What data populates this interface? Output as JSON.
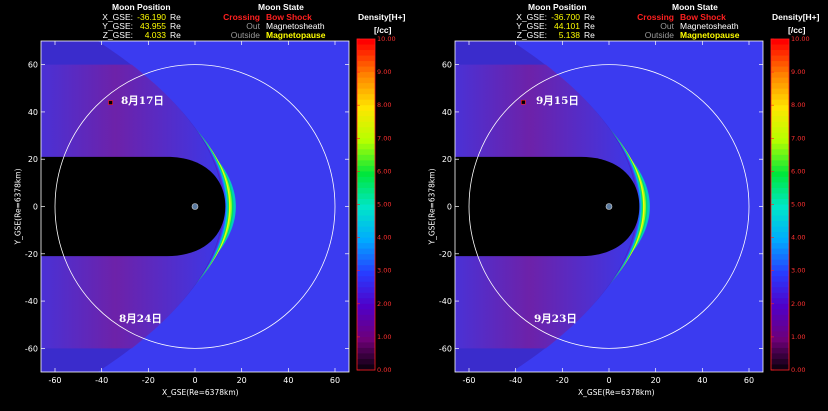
{
  "panels": [
    {
      "moon_position_title": "Moon Position",
      "x_label": "X_GSE:",
      "x_value": "-36.190",
      "x_unit": "Re",
      "y_label": "Y_GSE:",
      "y_value": "43.955",
      "y_unit": "Re",
      "z_label": "Z_GSE:",
      "z_value": "4.033",
      "z_unit": "Re",
      "moon_state_title": "Moon State",
      "state_rows": [
        {
          "status": "Crossing",
          "region": "Bow Shock"
        },
        {
          "status": "Out",
          "region": "Magnetosheath"
        },
        {
          "status": "Outside",
          "region": "Magnetopause"
        }
      ],
      "date_top": "8月17日",
      "date_bottom": "8月24日",
      "density_title": "Density[H+]",
      "density_unit": "[/cc]",
      "xlabel": "X_GSE(Re=6378km)",
      "ylabel": "Y_GSE(Re=6378km)",
      "moon_x": -36.19,
      "moon_y": 43.955
    },
    {
      "moon_position_title": "Moon Position",
      "x_label": "X_GSE:",
      "x_value": "-36.700",
      "x_unit": "Re",
      "y_label": "Y_GSE:",
      "y_value": "44.101",
      "y_unit": "Re",
      "z_label": "Z_GSE:",
      "z_value": "5.138",
      "z_unit": "Re",
      "moon_state_title": "Moon State",
      "state_rows": [
        {
          "status": "Crossing",
          "region": "Bow Shock"
        },
        {
          "status": "Out",
          "region": "Magnetosheath"
        },
        {
          "status": "Outside",
          "region": "Magnetopause"
        }
      ],
      "date_top": "9月15日",
      "date_bottom": "9月23日",
      "density_title": "Density[H+]",
      "density_unit": "[/cc]",
      "xlabel": "X_GSE(Re=6378km)",
      "ylabel": "Y_GSE(Re=6378km)",
      "moon_x": -36.7,
      "moon_y": 44.101
    }
  ],
  "x_ticks": [
    "-60",
    "-40",
    "-20",
    "0",
    "20",
    "40",
    "60"
  ],
  "y_ticks": [
    "60",
    "40",
    "20",
    "0",
    "-20",
    "-40",
    "-60"
  ],
  "colorbar_ticks": [
    "10.00",
    "9.00",
    "8.00",
    "7.00",
    "6.00",
    "5.00",
    "4.00",
    "3.00",
    "2.00",
    "1.00",
    "0.00"
  ],
  "colors": {
    "crossing": "#ff2020",
    "active_region": "#ffff00",
    "inactive": "#9a9a9a",
    "background_field": "#3b3bf0"
  }
}
